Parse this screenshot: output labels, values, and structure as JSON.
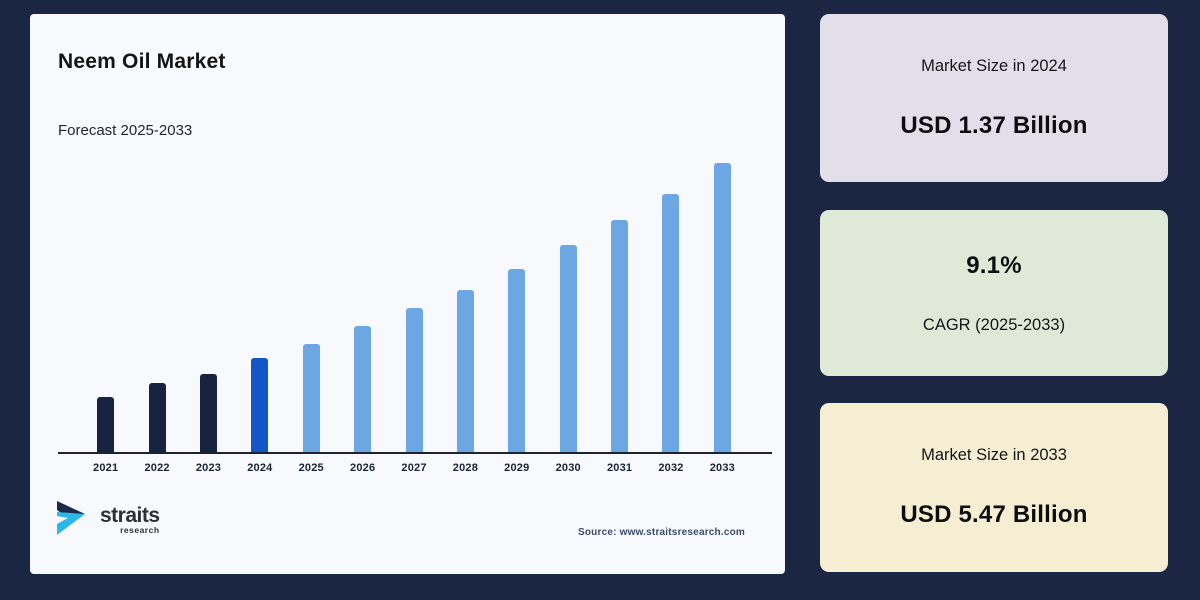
{
  "background_color": "#1b2742",
  "panel": {
    "title": "Neem Oil Market",
    "subtitle": "Forecast 2025-2033",
    "background": "#f8f9fc"
  },
  "chart_data": {
    "type": "bar",
    "title": "Neem Oil Market",
    "subtitle": "Forecast 2025-2033",
    "categories": [
      "2021",
      "2022",
      "2023",
      "2024",
      "2025",
      "2026",
      "2027",
      "2028",
      "2029",
      "2030",
      "2031",
      "2032",
      "2033"
    ],
    "values": [
      55,
      69,
      78,
      94,
      108,
      126,
      144,
      162,
      183,
      207,
      232,
      258,
      289
    ],
    "values_unit": "relative bar height in px (no y-axis or value labels shown in chart)",
    "labeled_points": {
      "2024": 1.37,
      "2033": 5.47,
      "unit": "USD Billion"
    },
    "cagr_pct": 9.1,
    "bar_colors": {
      "historical_2021_2023": "#17233f",
      "base_year_2024": "#1256c8",
      "forecast_2025_2033": "#6ca7e3"
    },
    "axis_color": "#1c2433",
    "grid": false,
    "y_axis_visible": false,
    "legend": "none"
  },
  "logo": {
    "name": "straits",
    "sub": "research",
    "icon_navy": "#1b2a4a",
    "icon_cyan": "#2bb7ea"
  },
  "source": "Source: www.straitsresearch.com",
  "cards": [
    {
      "id": "market-size-2024",
      "bg": "#e3dfea",
      "label": "Market Size in 2024",
      "value": "USD 1.37 Billion"
    },
    {
      "id": "cagr",
      "bg": "#dfe9d8",
      "label": "CAGR (2025-2033)",
      "value": "9.1%"
    },
    {
      "id": "market-size-2033",
      "bg": "#f5eed3",
      "label": "Market Size in 2033",
      "value": "USD 5.47 Billion"
    }
  ]
}
